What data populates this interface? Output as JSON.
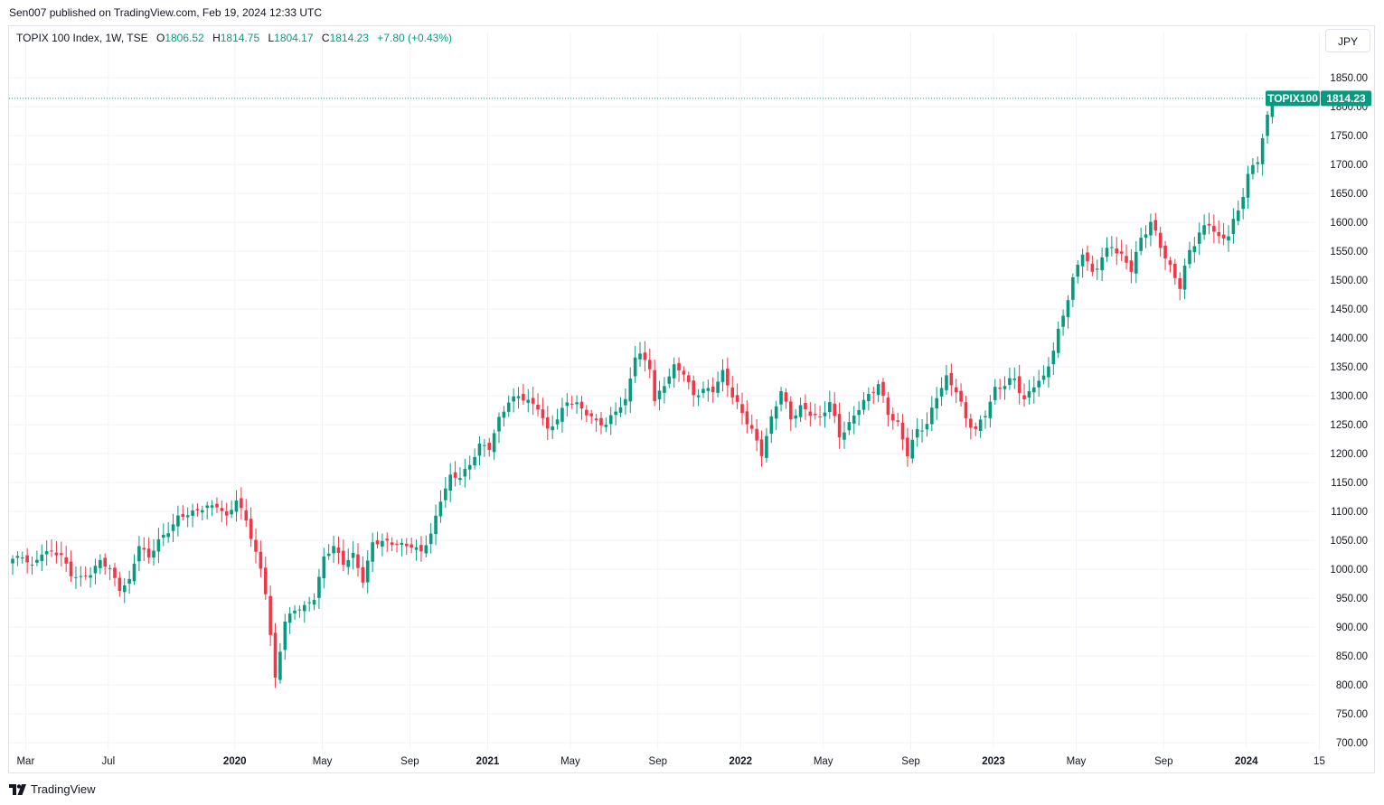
{
  "publisher_line": "Sen007 published on TradingView.com, Feb 19, 2024 12:33 UTC",
  "legend": {
    "symbol": "TOPIX 100 Index, 1W, TSE",
    "open_label": "O",
    "open": "1806.52",
    "high_label": "H",
    "high": "1814.75",
    "low_label": "L",
    "low": "1804.17",
    "close_label": "C",
    "close": "1814.23",
    "change": "+7.80 (+0.43%)"
  },
  "currency_button": "JPY",
  "price_tag": {
    "label": "TOPIX100",
    "value": "1814.23"
  },
  "footer_brand": "TradingView",
  "colors": {
    "up": "#089981",
    "down": "#f23645",
    "grid": "#f0f3fa",
    "text": "#131722"
  },
  "chart_data": {
    "type": "candlestick",
    "series_name": "TOPIX100",
    "interval": "1W",
    "ylim": [
      680,
      1890
    ],
    "y_ticks": [
      700,
      750,
      800,
      850,
      900,
      950,
      1000,
      1050,
      1100,
      1150,
      1200,
      1250,
      1300,
      1350,
      1400,
      1450,
      1500,
      1550,
      1600,
      1650,
      1700,
      1750,
      1800,
      1850
    ],
    "y_tick_labels": [
      "700.00",
      "750.00",
      "800.00",
      "850.00",
      "900.00",
      "950.00",
      "1000.00",
      "1050.00",
      "1100.00",
      "1150.00",
      "1200.00",
      "1250.00",
      "1300.00",
      "1350.00",
      "1400.00",
      "1450.00",
      "1500.00",
      "1550.00",
      "1600.00",
      "1650.00",
      "1700.00",
      "1750.00",
      "1800.00",
      "1850.00"
    ],
    "x_ticks": [
      {
        "label": "Mar",
        "week": 1,
        "bold": false
      },
      {
        "label": "Jul",
        "week": 18,
        "bold": false
      },
      {
        "label": "2020",
        "week": 44,
        "bold": true
      },
      {
        "label": "May",
        "week": 62,
        "bold": false
      },
      {
        "label": "Sep",
        "week": 80,
        "bold": false
      },
      {
        "label": "2021",
        "week": 96,
        "bold": true
      },
      {
        "label": "May",
        "week": 113,
        "bold": false
      },
      {
        "label": "Sep",
        "week": 131,
        "bold": false
      },
      {
        "label": "2022",
        "week": 148,
        "bold": true
      },
      {
        "label": "May",
        "week": 165,
        "bold": false
      },
      {
        "label": "Sep",
        "week": 183,
        "bold": false
      },
      {
        "label": "2023",
        "week": 200,
        "bold": true
      },
      {
        "label": "May",
        "week": 217,
        "bold": false
      },
      {
        "label": "Sep",
        "week": 235,
        "bold": false
      },
      {
        "label": "2024",
        "week": 252,
        "bold": true
      },
      {
        "label": "15",
        "week": 267,
        "bold": false
      }
    ],
    "last_price": 1814.23,
    "anchor_closes": [
      [
        0,
        1018
      ],
      [
        2,
        1022
      ],
      [
        4,
        1005
      ],
      [
        6,
        1028
      ],
      [
        8,
        1030
      ],
      [
        10,
        1024
      ],
      [
        12,
        990
      ],
      [
        14,
        985
      ],
      [
        16,
        992
      ],
      [
        18,
        1015
      ],
      [
        20,
        1000
      ],
      [
        22,
        965
      ],
      [
        24,
        980
      ],
      [
        26,
        1042
      ],
      [
        28,
        1020
      ],
      [
        30,
        1050
      ],
      [
        32,
        1065
      ],
      [
        34,
        1090
      ],
      [
        36,
        1095
      ],
      [
        38,
        1102
      ],
      [
        40,
        1108
      ],
      [
        42,
        1110
      ],
      [
        44,
        1090
      ],
      [
        46,
        1120
      ],
      [
        48,
        1085
      ],
      [
        49,
        1055
      ],
      [
        51,
        1000
      ],
      [
        52,
        960
      ],
      [
        54,
        810
      ],
      [
        56,
        910
      ],
      [
        58,
        930
      ],
      [
        60,
        935
      ],
      [
        62,
        950
      ],
      [
        64,
        1020
      ],
      [
        66,
        1040
      ],
      [
        68,
        1010
      ],
      [
        70,
        1025
      ],
      [
        72,
        980
      ],
      [
        74,
        1045
      ],
      [
        76,
        1048
      ],
      [
        78,
        1045
      ],
      [
        80,
        1042
      ],
      [
        82,
        1040
      ],
      [
        84,
        1030
      ],
      [
        86,
        1060
      ],
      [
        88,
        1120
      ],
      [
        90,
        1160
      ],
      [
        92,
        1160
      ],
      [
        94,
        1180
      ],
      [
        96,
        1215
      ],
      [
        98,
        1210
      ],
      [
        100,
        1260
      ],
      [
        102,
        1290
      ],
      [
        104,
        1300
      ],
      [
        106,
        1290
      ],
      [
        108,
        1280
      ],
      [
        110,
        1240
      ],
      [
        112,
        1260
      ],
      [
        114,
        1290
      ],
      [
        116,
        1285
      ],
      [
        118,
        1270
      ],
      [
        120,
        1255
      ],
      [
        122,
        1250
      ],
      [
        124,
        1275
      ],
      [
        126,
        1290
      ],
      [
        128,
        1370
      ],
      [
        129,
        1370
      ],
      [
        131,
        1350
      ],
      [
        132,
        1290
      ],
      [
        134,
        1320
      ],
      [
        136,
        1350
      ],
      [
        138,
        1340
      ],
      [
        140,
        1300
      ],
      [
        142,
        1310
      ],
      [
        144,
        1310
      ],
      [
        146,
        1340
      ],
      [
        148,
        1300
      ],
      [
        150,
        1270
      ],
      [
        152,
        1240
      ],
      [
        154,
        1200
      ],
      [
        156,
        1260
      ],
      [
        158,
        1310
      ],
      [
        160,
        1260
      ],
      [
        162,
        1280
      ],
      [
        164,
        1270
      ],
      [
        166,
        1260
      ],
      [
        168,
        1290
      ],
      [
        170,
        1230
      ],
      [
        172,
        1250
      ],
      [
        174,
        1280
      ],
      [
        176,
        1300
      ],
      [
        178,
        1320
      ],
      [
        180,
        1270
      ],
      [
        182,
        1250
      ],
      [
        184,
        1200
      ],
      [
        186,
        1240
      ],
      [
        188,
        1250
      ],
      [
        190,
        1300
      ],
      [
        192,
        1330
      ],
      [
        194,
        1310
      ],
      [
        196,
        1260
      ],
      [
        198,
        1240
      ],
      [
        200,
        1270
      ],
      [
        202,
        1310
      ],
      [
        204,
        1320
      ],
      [
        206,
        1330
      ],
      [
        208,
        1290
      ],
      [
        210,
        1320
      ],
      [
        212,
        1330
      ],
      [
        214,
        1380
      ],
      [
        216,
        1440
      ],
      [
        218,
        1500
      ],
      [
        220,
        1550
      ],
      [
        222,
        1510
      ],
      [
        224,
        1540
      ],
      [
        226,
        1560
      ],
      [
        228,
        1540
      ],
      [
        230,
        1520
      ],
      [
        232,
        1570
      ],
      [
        234,
        1600
      ],
      [
        236,
        1560
      ],
      [
        238,
        1520
      ],
      [
        240,
        1490
      ],
      [
        242,
        1550
      ],
      [
        244,
        1580
      ],
      [
        246,
        1600
      ],
      [
        248,
        1570
      ],
      [
        250,
        1580
      ],
      [
        252,
        1620
      ],
      [
        254,
        1680
      ],
      [
        256,
        1710
      ],
      [
        258,
        1780
      ],
      [
        259,
        1814.23
      ]
    ]
  }
}
